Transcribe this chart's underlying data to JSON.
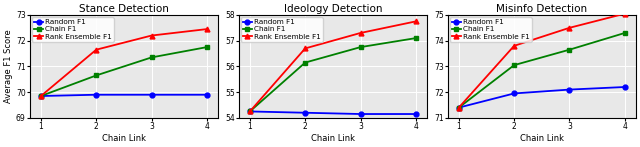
{
  "plots": [
    {
      "title": "Stance Detection",
      "ylabel": "Average F1 Score",
      "xlabel": "Chain Link",
      "xlim": [
        0.8,
        4.2
      ],
      "ylim": [
        69,
        73
      ],
      "yticks": [
        69,
        70,
        71,
        72,
        73
      ],
      "xticks": [
        1,
        2,
        3,
        4
      ],
      "random": [
        69.85,
        69.9,
        69.9,
        69.9
      ],
      "chain": [
        69.85,
        70.65,
        71.35,
        71.75
      ],
      "rank": [
        69.85,
        71.65,
        72.2,
        72.45
      ]
    },
    {
      "title": "Ideology Detection",
      "ylabel": "",
      "xlabel": "Chain Link",
      "xlim": [
        0.8,
        4.2
      ],
      "ylim": [
        54,
        58
      ],
      "yticks": [
        54,
        55,
        56,
        57,
        58
      ],
      "xticks": [
        1,
        2,
        3,
        4
      ],
      "random": [
        54.25,
        54.2,
        54.15,
        54.15
      ],
      "chain": [
        54.25,
        56.15,
        56.75,
        57.1
      ],
      "rank": [
        54.25,
        56.7,
        57.3,
        57.75
      ]
    },
    {
      "title": "Misinfo Detection",
      "ylabel": "",
      "xlabel": "Chain Link",
      "xlim": [
        0.8,
        4.2
      ],
      "ylim": [
        71,
        75
      ],
      "yticks": [
        71,
        72,
        73,
        74,
        75
      ],
      "xticks": [
        1,
        2,
        3,
        4
      ],
      "random": [
        71.4,
        71.95,
        72.1,
        72.2
      ],
      "chain": [
        71.4,
        73.05,
        73.65,
        74.3
      ],
      "rank": [
        71.4,
        73.8,
        74.5,
        75.05
      ]
    }
  ],
  "colors": {
    "random": "#0000ff",
    "chain": "#008000",
    "rank": "#ff0000"
  },
  "markers": {
    "random": "o",
    "chain": "s",
    "rank": "^"
  },
  "legend_labels": {
    "random": "Random F1",
    "chain": "Chain F1",
    "rank": "Rank Ensemble F1"
  },
  "linewidth": 1.3,
  "markersize": 3.5,
  "fontsize_title": 7.5,
  "fontsize_axis": 6.0,
  "fontsize_tick": 5.5,
  "fontsize_legend": 5.2,
  "bg_color": "#e8e8e8",
  "grid_color": "white",
  "grid_linewidth": 0.7
}
